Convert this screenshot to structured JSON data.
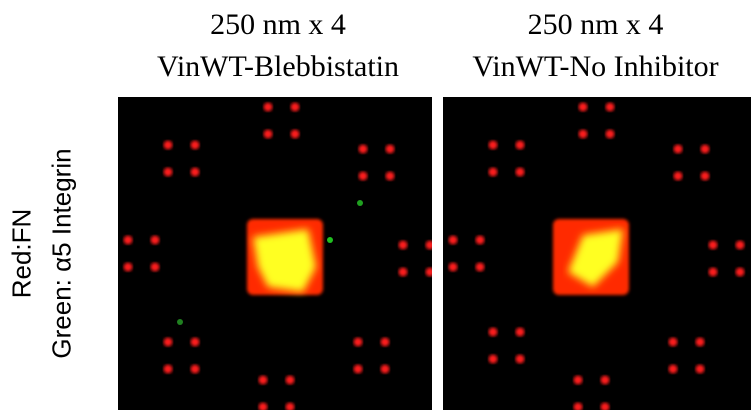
{
  "panels": [
    {
      "title": "250 nm x 4",
      "subtitle": "VinWT-Blebbistatin"
    },
    {
      "title": "250 nm x 4",
      "subtitle": "VinWT-No Inhibitor"
    }
  ],
  "y_label": {
    "line1": "Red:FN",
    "line2": "Green: α5 Integrin"
  }
}
